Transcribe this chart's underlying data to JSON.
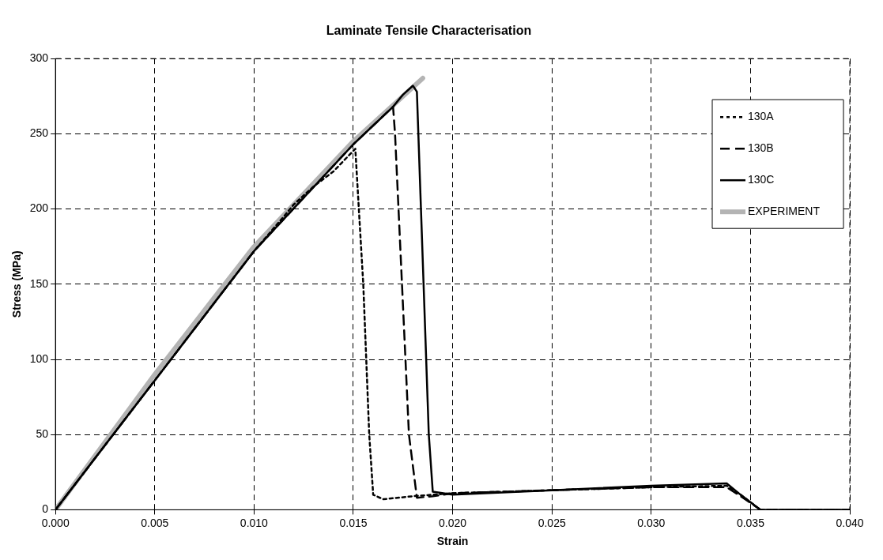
{
  "chart_data": {
    "type": "line",
    "title": "Laminate Tensile Characterisation",
    "xlabel": "Strain",
    "ylabel": "Stress (MPa)",
    "xlim": [
      0,
      0.04
    ],
    "xticks": [
      {
        "value": 0,
        "label": "0.000"
      },
      {
        "value": 0.005,
        "label": "0.005"
      },
      {
        "value": 0.01,
        "label": "0.010"
      },
      {
        "value": 0.015,
        "label": "0.015"
      },
      {
        "value": 0.02,
        "label": "0.020"
      },
      {
        "value": 0.025,
        "label": "0.025"
      },
      {
        "value": 0.03,
        "label": "0.030"
      },
      {
        "value": 0.035,
        "label": "0.035"
      },
      {
        "value": 0.04,
        "label": "0.040"
      }
    ],
    "ylim": [
      0,
      300
    ],
    "yticks": [
      0,
      50,
      100,
      150,
      200,
      250,
      300
    ],
    "grid": true,
    "legend": "top right",
    "marker": "none",
    "series": [
      {
        "name": "130A",
        "color": "#000000",
        "line_style": "dotted",
        "x": [
          0,
          0.005,
          0.01,
          0.0115,
          0.012,
          0.013,
          0.014,
          0.0148,
          0.0151,
          0.0155,
          0.0158,
          0.016,
          0.0165,
          0.018,
          0.02,
          0.025,
          0.03,
          0.0338,
          0.0345,
          0.0355,
          0.04
        ],
        "values": [
          0,
          86,
          172,
          195,
          203,
          215,
          225,
          236,
          240,
          150,
          50,
          10,
          7,
          9,
          11,
          13,
          15,
          16,
          10,
          0,
          0
        ]
      },
      {
        "name": "130B",
        "color": "#000000",
        "line_style": "dashed",
        "x": [
          0,
          0.005,
          0.01,
          0.015,
          0.017,
          0.0171,
          0.0178,
          0.0182,
          0.019,
          0.02,
          0.025,
          0.03,
          0.0338,
          0.0345,
          0.0355,
          0.04
        ],
        "values": [
          0,
          86,
          172,
          243,
          268,
          250,
          50,
          8,
          9,
          11,
          13,
          15,
          15,
          9,
          0,
          0
        ]
      },
      {
        "name": "130C",
        "color": "#000000",
        "line_style": "solid",
        "x": [
          0,
          0.005,
          0.01,
          0.015,
          0.017,
          0.0175,
          0.018,
          0.0182,
          0.0188,
          0.019,
          0.02,
          0.025,
          0.03,
          0.0338,
          0.0345,
          0.0355,
          0.04
        ],
        "values": [
          0,
          86,
          172,
          243,
          268,
          276,
          282,
          278,
          50,
          12,
          10,
          13,
          16,
          17.5,
          10,
          0,
          0
        ]
      },
      {
        "name": "EXPERIMENT",
        "color": "#b4b4b4",
        "line_style": "solid",
        "x": [
          0,
          0.005,
          0.01,
          0.015,
          0.0185
        ],
        "values": [
          0,
          90,
          175,
          245,
          287
        ]
      }
    ]
  }
}
